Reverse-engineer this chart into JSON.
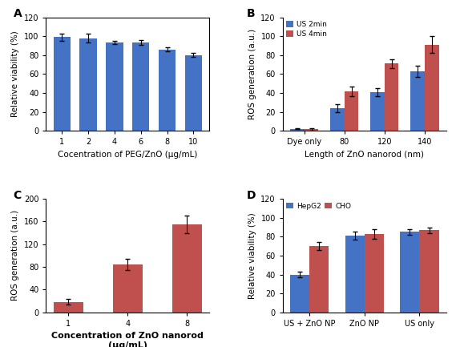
{
  "A": {
    "categories": [
      "1",
      "2",
      "4",
      "6",
      "8",
      "10"
    ],
    "values": [
      99,
      98,
      93.5,
      93.5,
      86,
      80
    ],
    "errors": [
      3.5,
      4.5,
      2,
      2.5,
      2,
      2
    ],
    "bar_color": "#4472c4",
    "xlabel": "Cocentration of PEG/ZnO (μg/mL)",
    "ylabel": "Relative viability (%)",
    "ylim": [
      0,
      120
    ],
    "yticks": [
      0,
      20,
      40,
      60,
      80,
      100,
      120
    ],
    "label": "A",
    "has_box": true
  },
  "B": {
    "categories": [
      "Dye only",
      "80",
      "120",
      "140"
    ],
    "us2min": [
      2,
      24,
      41,
      63
    ],
    "us2min_err": [
      0.5,
      4,
      4,
      6
    ],
    "us4min": [
      1.5,
      42,
      71,
      91
    ],
    "us4min_err": [
      1.5,
      5,
      5,
      9
    ],
    "color_2min": "#4472c4",
    "color_4min": "#c0504d",
    "xlabel": "Length of ZnO nanorod (nm)",
    "ylabel": "ROS generation (a.u.)",
    "ylim": [
      0,
      120
    ],
    "yticks": [
      0,
      20,
      40,
      60,
      80,
      100,
      120
    ],
    "legend": [
      "US 2min",
      "US 4min"
    ],
    "label": "B"
  },
  "C": {
    "categories": [
      "1",
      "4",
      "8"
    ],
    "values": [
      18,
      84,
      155
    ],
    "errors": [
      5,
      10,
      15
    ],
    "bar_color": "#c0504d",
    "xlabel": "Concentration of ZnO nanorod\n(μg/mL)",
    "ylabel": "ROS generation (a.u.)",
    "ylim": [
      0,
      200
    ],
    "yticks": [
      0,
      40,
      80,
      120,
      160,
      200
    ],
    "label": "C"
  },
  "D": {
    "categories": [
      "US + ZnO NP",
      "ZnO NP",
      "US only"
    ],
    "hepg2": [
      40,
      81,
      85
    ],
    "hepg2_err": [
      3,
      4,
      3
    ],
    "cho": [
      70,
      83,
      87
    ],
    "cho_err": [
      4,
      5,
      3
    ],
    "color_hepg2": "#4472c4",
    "color_cho": "#c0504d",
    "xlabel": "",
    "ylabel": "Relative viability (%)",
    "ylim": [
      0,
      120
    ],
    "yticks": [
      0,
      20,
      40,
      60,
      80,
      100,
      120
    ],
    "legend": [
      "HepG2",
      "CHO"
    ],
    "label": "D"
  },
  "fontsize_label": 7.5,
  "fontsize_label_bold": 8,
  "fontsize_tick": 7,
  "fontsize_panel": 10
}
